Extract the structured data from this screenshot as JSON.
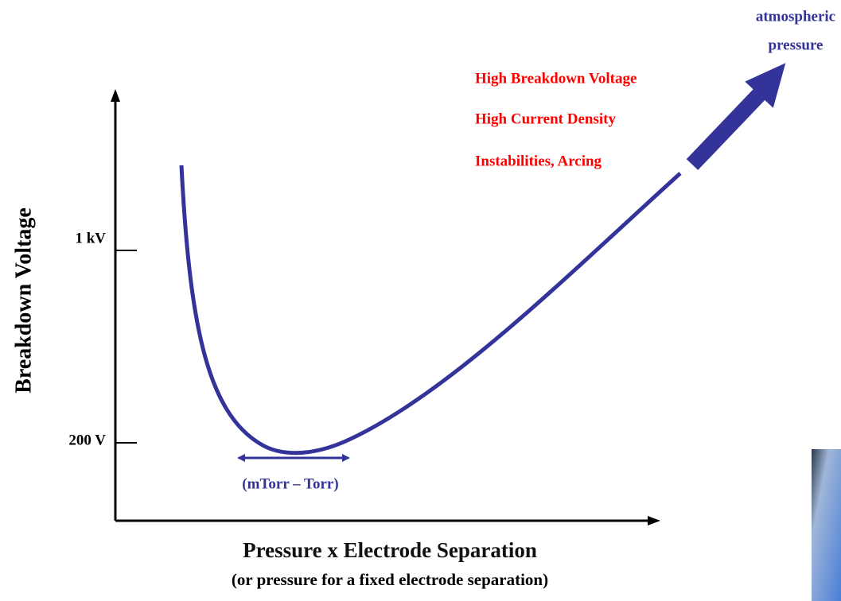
{
  "axes": {
    "y_label": "Breakdown Voltage",
    "x_label": "Pressure x Electrode Separation",
    "x_sublabel": "(or pressure for a fixed electrode separation)",
    "y_ticks": [
      "1 kV",
      "200 V"
    ]
  },
  "annotations": {
    "high_pressure": [
      "High Breakdown Voltage",
      "High Current Density",
      "Instabilities, Arcing"
    ],
    "range": "(mTorr – Torr)",
    "arrow_label": [
      "atmospheric",
      "pressure"
    ]
  }
}
